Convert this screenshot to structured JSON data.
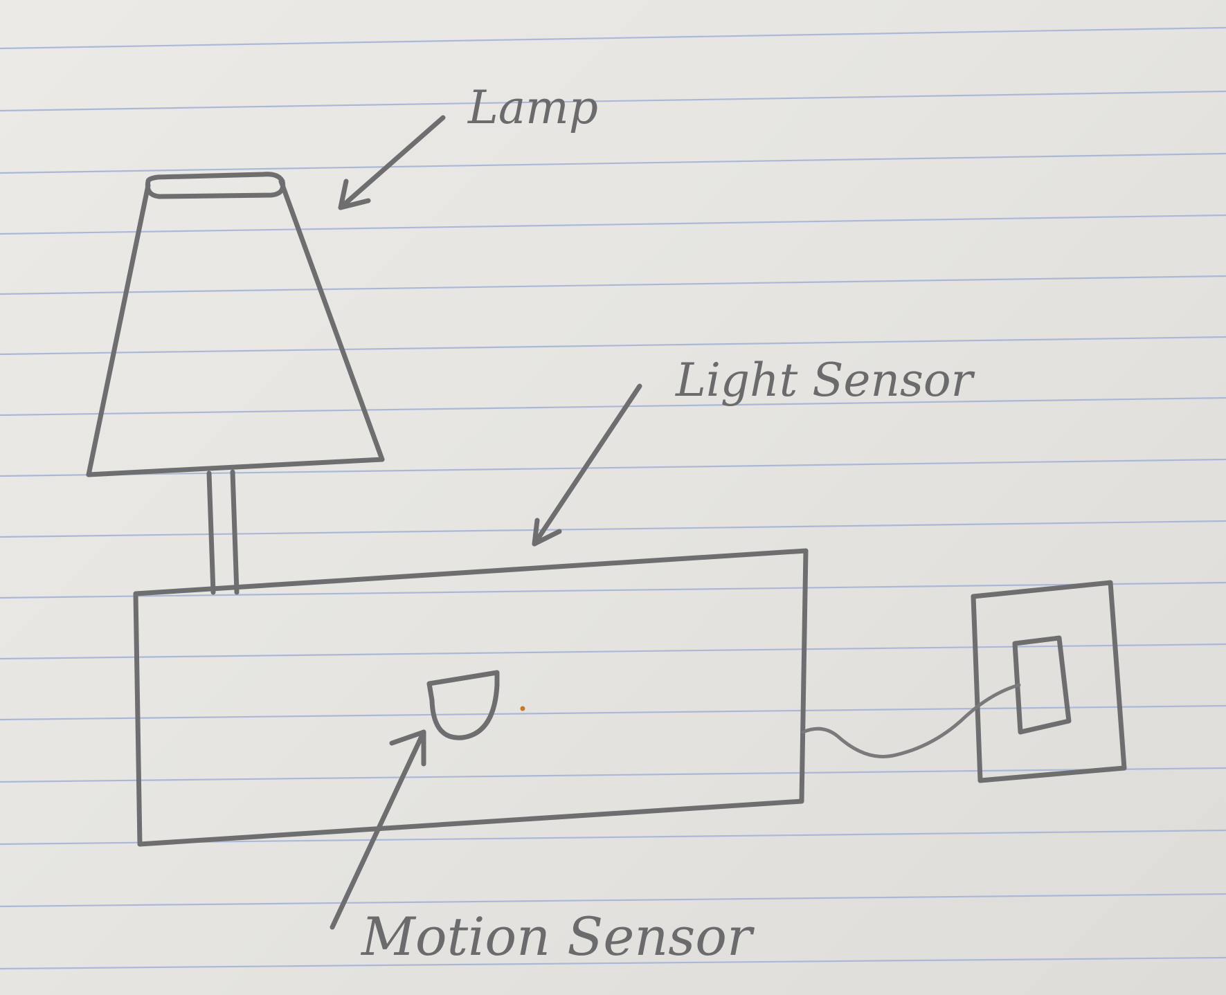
{
  "colors": {
    "paper": "#e8e7e3",
    "rule_line": "#9fb0d6",
    "pencil": "#6e6e70",
    "dot": "#c8782a"
  },
  "labels": {
    "lamp": "Lamp",
    "light_sensor": "Light Sensor",
    "motion_sensor": "Motion Sensor"
  }
}
